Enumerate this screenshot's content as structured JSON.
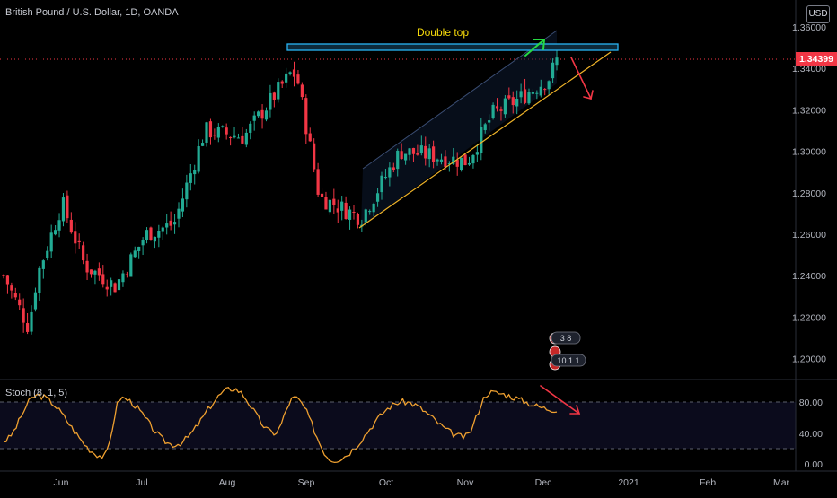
{
  "header": {
    "symbol_title": "British Pound / U.S. Dollar, 1D, OANDA",
    "currency_button": "USD"
  },
  "price_axis": {
    "ticks": [
      "1.36000",
      "1.34000",
      "1.32000",
      "1.30000",
      "1.28000",
      "1.26000",
      "1.24000",
      "1.22000",
      "1.20000"
    ],
    "last_price_label": "1.34399",
    "last_price_color": "#f23645"
  },
  "oscillator": {
    "title": "Stoch (8, 1, 5)",
    "ticks": [
      "80.00",
      "40.00",
      "0.00"
    ],
    "line_color": "#f0a130"
  },
  "time_axis": {
    "labels": [
      "Jun",
      "Jul",
      "Aug",
      "Sep",
      "Oct",
      "Nov",
      "Dec",
      "2021",
      "Feb",
      "Mar"
    ]
  },
  "annotations": {
    "double_top_label": "Double top",
    "label_color": "#f5d90a",
    "resistance_color": "#29b6f6",
    "support_color": "#f0b429",
    "bull_arrow_color": "#26d943",
    "bear_arrow_color": "#f23645"
  },
  "events": {
    "badge_1": "3 8",
    "badge_2": "10 1 1"
  },
  "colors": {
    "up": "#22ab94",
    "down": "#f23645",
    "background": "#000000"
  },
  "chart_data": [
    {
      "type": "candlestick",
      "title": "British Pound / U.S. Dollar, 1D, OANDA",
      "ylim": [
        1.19,
        1.365
      ],
      "x": [
        "Jun",
        "Jul",
        "Aug",
        "Sep",
        "Oct",
        "Nov",
        "Dec",
        "2021",
        "Feb",
        "Mar"
      ],
      "approx_close_path": [
        {
          "date": "May 20",
          "close": 1.24
        },
        {
          "date": "May 29",
          "close": 1.215
        },
        {
          "date": "Jun 1",
          "close": 1.24
        },
        {
          "date": "Jun 10",
          "close": 1.275
        },
        {
          "date": "Jun 18",
          "close": 1.245
        },
        {
          "date": "Jun 29",
          "close": 1.235
        },
        {
          "date": "Jul 10",
          "close": 1.26
        },
        {
          "date": "Jul 20",
          "close": 1.265
        },
        {
          "date": "Jul 31",
          "close": 1.31
        },
        {
          "date": "Aug 14",
          "close": 1.307
        },
        {
          "date": "Aug 31",
          "close": 1.338
        },
        {
          "date": "Sep 2",
          "close": 1.336
        },
        {
          "date": "Sep 10",
          "close": 1.278
        },
        {
          "date": "Sep 25",
          "close": 1.268
        },
        {
          "date": "Oct 9",
          "close": 1.3
        },
        {
          "date": "Oct 20",
          "close": 1.298
        },
        {
          "date": "Nov 2",
          "close": 1.295
        },
        {
          "date": "Nov 11",
          "close": 1.318
        },
        {
          "date": "Nov 20",
          "close": 1.325
        },
        {
          "date": "Dec 1",
          "close": 1.335
        },
        {
          "date": "Dec 4",
          "close": 1.344
        }
      ],
      "last_price": 1.34399,
      "annotation": "Double top"
    },
    {
      "type": "line",
      "title": "Stoch (8, 1, 5)",
      "ylim": [
        0,
        100
      ],
      "levels": [
        80,
        20
      ],
      "approx_values": [
        {
          "date": "May 20",
          "value": 30
        },
        {
          "date": "Jun 1",
          "value": 88
        },
        {
          "date": "Jun 25",
          "value": 10
        },
        {
          "date": "Jul 1",
          "value": 85
        },
        {
          "date": "Jul 20",
          "value": 25
        },
        {
          "date": "Aug 10",
          "value": 97
        },
        {
          "date": "Aug 25",
          "value": 40
        },
        {
          "date": "Sep 1",
          "value": 85
        },
        {
          "date": "Sep 15",
          "value": 5
        },
        {
          "date": "Oct 10",
          "value": 80
        },
        {
          "date": "Nov 1",
          "value": 35
        },
        {
          "date": "Nov 10",
          "value": 92
        },
        {
          "date": "Dec 4",
          "value": 70
        }
      ]
    }
  ]
}
